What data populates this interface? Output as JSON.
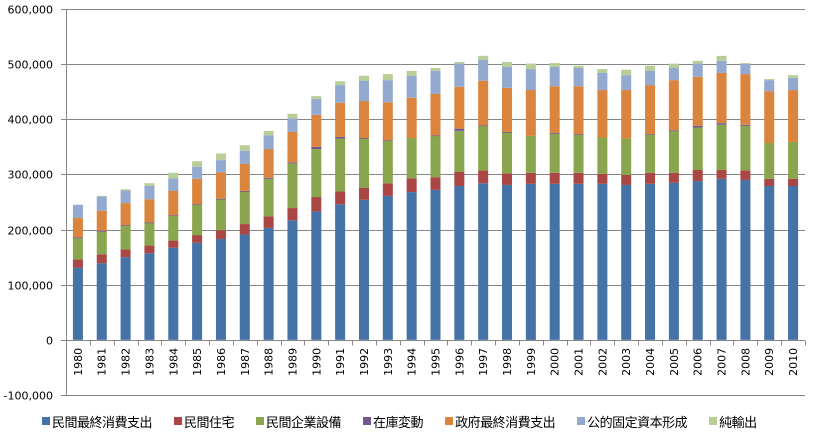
{
  "chart_data": {
    "type": "bar",
    "stacked": true,
    "title": "",
    "xlabel": "",
    "ylabel": "",
    "ylim": [
      -100000,
      600000
    ],
    "yticks": [
      -100000,
      0,
      100000,
      200000,
      300000,
      400000,
      500000,
      600000
    ],
    "ytick_labels": [
      "-100,000",
      "0",
      "100,000",
      "200,000",
      "300,000",
      "400,000",
      "500,000",
      "600,000"
    ],
    "grid": true,
    "legend_position": "bottom",
    "categories": [
      "1980",
      "1981",
      "1982",
      "1983",
      "1984",
      "1985",
      "1986",
      "1987",
      "1988",
      "1989",
      "1990",
      "1991",
      "1992",
      "1993",
      "1994",
      "1995",
      "1996",
      "1997",
      "1998",
      "1999",
      "2000",
      "2001",
      "2002",
      "2003",
      "2004",
      "2005",
      "2006",
      "2007",
      "2008",
      "2009",
      "2010"
    ],
    "series": [
      {
        "name": "民間最終消費支出",
        "color": "#4572A7",
        "values": [
          131000,
          139000,
          150000,
          157000,
          167000,
          176000,
          183000,
          191000,
          203000,
          217000,
          233000,
          246000,
          254000,
          261000,
          268000,
          272000,
          279000,
          284000,
          281000,
          283000,
          283000,
          283000,
          283000,
          281000,
          283000,
          285000,
          288000,
          292000,
          290000,
          279000,
          279000
        ]
      },
      {
        "name": "民間住宅",
        "color": "#AA4643",
        "values": [
          15000,
          16000,
          14000,
          14000,
          13000,
          14000,
          16000,
          19000,
          21000,
          22000,
          26000,
          23000,
          22000,
          23000,
          25000,
          23000,
          26000,
          23000,
          21000,
          20000,
          20000,
          20000,
          18000,
          18000,
          20000,
          18000,
          20000,
          16000,
          17000,
          13000,
          13000
        ]
      },
      {
        "name": "民間企業設備",
        "color": "#89A54E",
        "values": [
          38000,
          41000,
          43000,
          41000,
          45000,
          55000,
          56000,
          59000,
          68000,
          81000,
          87000,
          96000,
          89000,
          77000,
          73000,
          75000,
          74000,
          81000,
          74000,
          67000,
          71000,
          69000,
          66000,
          66000,
          69000,
          76000,
          77000,
          82000,
          81000,
          65000,
          67000
        ]
      },
      {
        "name": "在庫変動",
        "color": "#71588F",
        "values": [
          2000,
          2000,
          1000,
          1000,
          1000,
          1000,
          1000,
          1000,
          2000,
          2000,
          4000,
          3000,
          1000,
          1000,
          0,
          1000,
          4000,
          1000,
          1000,
          -1000,
          1000,
          1000,
          0,
          0,
          1000,
          1000,
          3000,
          3000,
          2000,
          -1000,
          0
        ]
      },
      {
        "name": "政府最終消費支出",
        "color": "#DB843D",
        "values": [
          35000,
          36000,
          40000,
          42000,
          44000,
          46000,
          48000,
          49000,
          52000,
          55000,
          58000,
          62000,
          67000,
          69000,
          73000,
          75000,
          76000,
          81000,
          80000,
          83000,
          85000,
          87000,
          86000,
          88000,
          89000,
          91000,
          89000,
          91000,
          92000,
          94000,
          94000
        ]
      },
      {
        "name": "公的固定資本形成",
        "color": "#93A9CF",
        "values": [
          24000,
          26000,
          23000,
          24000,
          23000,
          22000,
          22000,
          24000,
          25000,
          25000,
          29000,
          32000,
          37000,
          40000,
          40000,
          42000,
          42000,
          38000,
          38000,
          38000,
          35000,
          33000,
          31000,
          27000,
          26000,
          22000,
          24000,
          22000,
          19000,
          20000,
          22000
        ]
      },
      {
        "name": "純輸出",
        "color": "#B9CD96",
        "values": [
          0,
          1000,
          2000,
          5000,
          10000,
          10000,
          12000,
          10000,
          8000,
          8000,
          5000,
          7000,
          9000,
          11000,
          9000,
          5000,
          3000,
          7000,
          9000,
          10000,
          7000,
          4000,
          7000,
          10000,
          9000,
          8000,
          5000,
          9000,
          1000,
          2000,
          5000
        ]
      }
    ]
  }
}
